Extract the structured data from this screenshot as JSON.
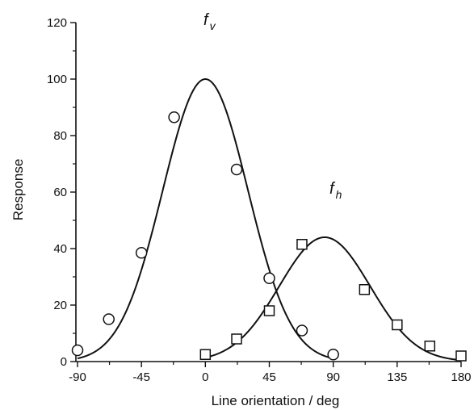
{
  "chart_data": {
    "type": "scatter",
    "xlabel": "Line orientation / deg",
    "ylabel": "Response",
    "xlim": [
      -90,
      180
    ],
    "ylim": [
      0,
      120
    ],
    "x_ticks": [
      -90,
      -45,
      0,
      45,
      90,
      135,
      180
    ],
    "x_tick_labels": [
      "-90",
      "-45",
      "0",
      "45",
      "90",
      "135",
      "180"
    ],
    "y_ticks": [
      0,
      20,
      40,
      60,
      80,
      100,
      120
    ],
    "y_tick_labels": [
      "0",
      "20",
      "40",
      "60",
      "80",
      "100",
      "120"
    ],
    "grid": false,
    "series": [
      {
        "name": "fv",
        "label_main": "f",
        "label_sub": "v",
        "marker": "circle",
        "points": [
          {
            "x": -90,
            "y": 4
          },
          {
            "x": -68,
            "y": 15
          },
          {
            "x": -45,
            "y": 38.5
          },
          {
            "x": -22,
            "y": 86.5
          },
          {
            "x": 22,
            "y": 68
          },
          {
            "x": 45,
            "y": 29.5
          },
          {
            "x": 68,
            "y": 11
          },
          {
            "x": 90,
            "y": 2.5
          }
        ],
        "fit": {
          "form": "gaussian",
          "amplitude": 100,
          "mean": 0,
          "sd": 30,
          "x_range": [
            -90,
            90
          ]
        }
      },
      {
        "name": "fh",
        "label_main": "f",
        "label_sub": "h",
        "marker": "square",
        "points": [
          {
            "x": 0,
            "y": 2.5
          },
          {
            "x": 22,
            "y": 8
          },
          {
            "x": 45,
            "y": 18
          },
          {
            "x": 68,
            "y": 41.5
          },
          {
            "x": 112,
            "y": 25.5
          },
          {
            "x": 135,
            "y": 13
          },
          {
            "x": 158,
            "y": 5.5
          },
          {
            "x": 180,
            "y": 2
          }
        ],
        "fit": {
          "form": "gaussian",
          "amplitude": 44,
          "mean": 84,
          "sd": 32,
          "x_range": [
            0,
            180
          ]
        }
      }
    ]
  }
}
